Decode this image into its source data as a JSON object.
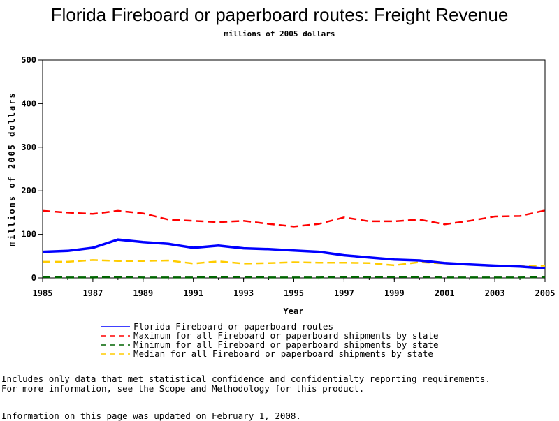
{
  "chart_data": {
    "type": "line",
    "title": "Florida Fireboard or paperboard routes: Freight Revenue",
    "subtitle": "millions of 2005 dollars",
    "xlabel": "Year",
    "ylabel": "millions of 2005 dollars",
    "xlim": [
      1985,
      2005
    ],
    "ylim": [
      0,
      500
    ],
    "x_ticks": [
      "1985",
      "1987",
      "1989",
      "1991",
      "1993",
      "1995",
      "1997",
      "1999",
      "2001",
      "2003",
      "2005"
    ],
    "y_ticks": [
      "0",
      "100",
      "200",
      "300",
      "400",
      "500"
    ],
    "x": [
      1985,
      1986,
      1987,
      1988,
      1989,
      1990,
      1991,
      1992,
      1993,
      1994,
      1995,
      1996,
      1997,
      1998,
      1999,
      2000,
      2001,
      2002,
      2003,
      2004,
      2005
    ],
    "series": [
      {
        "name": "Florida Fireboard or paperboard routes",
        "color": "#0000ff",
        "style": "solid",
        "values": [
          60,
          62,
          69,
          88,
          82,
          78,
          69,
          74,
          68,
          66,
          63,
          60,
          52,
          47,
          42,
          40,
          34,
          31,
          28,
          26,
          22
        ]
      },
      {
        "name": "Maximum for all Fireboard or paperboard shipments by state",
        "color": "#ff0000",
        "style": "dashed",
        "values": [
          154,
          150,
          147,
          154,
          148,
          134,
          131,
          128,
          131,
          124,
          118,
          124,
          139,
          130,
          130,
          134,
          123,
          131,
          141,
          142,
          155
        ]
      },
      {
        "name": "Minimum for all Fireboard or paperboard shipments by state",
        "color": "#006400",
        "style": "dashed",
        "values": [
          2,
          1,
          1,
          2,
          1,
          1,
          1,
          2,
          2,
          1,
          1,
          1,
          2,
          2,
          2,
          2,
          1,
          1,
          1,
          1,
          2
        ]
      },
      {
        "name": "Median for all Fireboard or paperboard shipments by state",
        "color": "#ffcc00",
        "style": "dashed",
        "values": [
          37,
          37,
          41,
          39,
          39,
          40,
          33,
          38,
          33,
          34,
          36,
          35,
          35,
          34,
          29,
          36,
          33,
          31,
          27,
          28,
          28
        ]
      }
    ],
    "grid": false,
    "legend_position": "bottom"
  },
  "notes": {
    "line1": "Includes only data that met statistical confidence and confidentialty reporting requirements.",
    "line2": "For more information, see the Scope and Methodology for this product.",
    "updated": "Information on this page was updated on February 1, 2008."
  }
}
